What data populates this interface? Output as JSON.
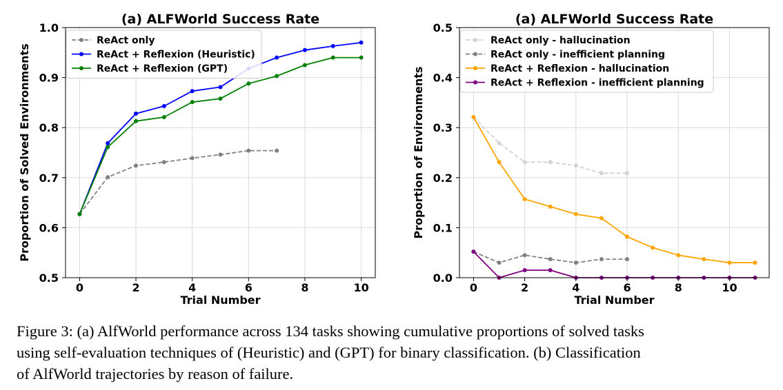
{
  "chart_data": [
    {
      "type": "line",
      "title": "(a) ALFWorld Success Rate",
      "xlabel": "Trial Number",
      "ylabel": "Proportion of Solved Environments",
      "xlim": [
        -0.5,
        10.5
      ],
      "ylim": [
        0.5,
        1.0
      ],
      "xticks": [
        0,
        2,
        4,
        6,
        8,
        10
      ],
      "xtick_labels": [
        "0",
        "2",
        "4",
        "6",
        "8",
        "10"
      ],
      "yticks": [
        0.5,
        0.6,
        0.7,
        0.8,
        0.9,
        1.0
      ],
      "ytick_labels": [
        "0.5",
        "0.6",
        "0.7",
        "0.8",
        "0.9",
        "1.0"
      ],
      "grid": true,
      "legend_position": "top-left",
      "series": [
        {
          "name": "ReAct only",
          "color": "#808080",
          "dashed": true,
          "x": [
            0,
            1,
            2,
            3,
            4,
            5,
            6,
            7
          ],
          "y": [
            0.627,
            0.701,
            0.724,
            0.731,
            0.739,
            0.746,
            0.754,
            0.754
          ]
        },
        {
          "name": "ReAct + Reflexion (Heuristic)",
          "color": "#0000ff",
          "dashed": false,
          "x": [
            0,
            1,
            2,
            3,
            4,
            5,
            6,
            7,
            8,
            9,
            10
          ],
          "y": [
            0.627,
            0.769,
            0.828,
            0.843,
            0.873,
            0.881,
            0.918,
            0.94,
            0.955,
            0.963,
            0.97
          ]
        },
        {
          "name": "ReAct + Reflexion (GPT)",
          "color": "#008000",
          "dashed": false,
          "x": [
            0,
            1,
            2,
            3,
            4,
            5,
            6,
            7,
            8,
            9,
            10
          ],
          "y": [
            0.627,
            0.761,
            0.813,
            0.821,
            0.851,
            0.858,
            0.888,
            0.903,
            0.925,
            0.94,
            0.94
          ]
        }
      ]
    },
    {
      "type": "line",
      "title": "(a) ALFWorld Success Rate",
      "xlabel": "Trial Number",
      "ylabel": "Proportion of Environments",
      "xlim": [
        -0.55,
        11.55
      ],
      "ylim": [
        0.0,
        0.5
      ],
      "xticks": [
        0,
        2,
        4,
        6,
        8,
        10
      ],
      "xtick_labels": [
        "0",
        "2",
        "4",
        "6",
        "8",
        "10"
      ],
      "yticks": [
        0.0,
        0.1,
        0.2,
        0.3,
        0.4,
        0.5
      ],
      "ytick_labels": [
        "0.0",
        "0.1",
        "0.2",
        "0.3",
        "0.4",
        "0.5"
      ],
      "grid": true,
      "legend_position": "top-left",
      "series": [
        {
          "name": "ReAct only - hallucination",
          "color": "#d3d3d3",
          "dashed": true,
          "x": [
            0,
            1,
            2,
            3,
            4,
            5,
            6
          ],
          "y": [
            0.321,
            0.269,
            0.231,
            0.231,
            0.224,
            0.209,
            0.209
          ]
        },
        {
          "name": "ReAct only - inefficient planning",
          "color": "#808080",
          "dashed": true,
          "x": [
            0,
            1,
            2,
            3,
            4,
            5,
            6
          ],
          "y": [
            0.052,
            0.03,
            0.045,
            0.037,
            0.03,
            0.037,
            0.037
          ]
        },
        {
          "name": "ReAct + Reflexion - hallucination",
          "color": "#ffa500",
          "dashed": false,
          "x": [
            0,
            1,
            2,
            3,
            4,
            5,
            6,
            7,
            8,
            9,
            10,
            11
          ],
          "y": [
            0.321,
            0.231,
            0.157,
            0.142,
            0.127,
            0.119,
            0.082,
            0.06,
            0.045,
            0.037,
            0.03,
            0.03
          ]
        },
        {
          "name": "ReAct + Reflexion - inefficient planning",
          "color": "#800080",
          "dashed": false,
          "x": [
            0,
            1,
            2,
            3,
            4,
            5,
            6,
            7,
            8,
            9,
            10,
            11
          ],
          "y": [
            0.052,
            0.0,
            0.015,
            0.015,
            0.0,
            0.0,
            0.0,
            0.0,
            0.0,
            0.0,
            0.0,
            0.0
          ]
        }
      ]
    }
  ],
  "caption": {
    "lines": [
      "Figure 3: (a) AlfWorld performance across 134 tasks showing cumulative proportions of solved tasks",
      "using self-evaluation techniques of (Heuristic) and (GPT) for binary classification. (b) Classification",
      "of AlfWorld trajectories by reason of failure."
    ]
  }
}
